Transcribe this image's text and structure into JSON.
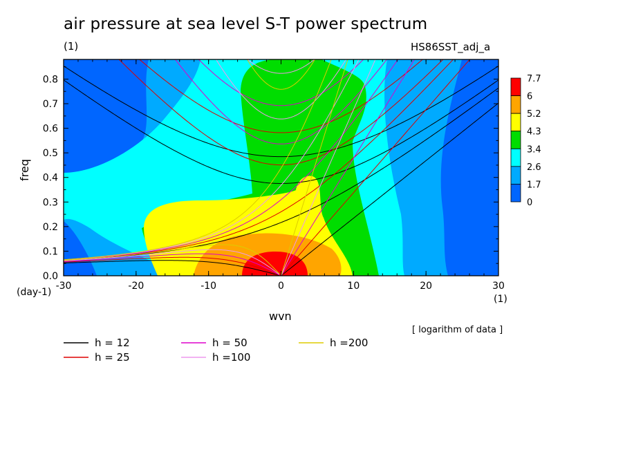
{
  "header": {
    "title": "air pressure at sea level S-T power spectrum",
    "unit": "(1)",
    "run_id": "HS86SST_adj_a"
  },
  "note": "[ logarithm of data ]",
  "chart_data": {
    "type": "heatmap",
    "xlabel": "wvn",
    "xunit": "(1)",
    "ylabel": "freq",
    "yunit": "(day-1)",
    "xlim": [
      -30,
      30
    ],
    "ylim": [
      0,
      0.88
    ],
    "xticks": [
      -30,
      -20,
      -10,
      0,
      10,
      20,
      30
    ],
    "yticks": [
      0.0,
      0.1,
      0.2,
      0.3,
      0.4,
      0.5,
      0.6,
      0.7,
      0.8
    ],
    "xtick_labels": [
      "-30",
      "-20",
      "-10",
      "0",
      "10",
      "20",
      "30"
    ],
    "ytick_labels": [
      "0.0",
      "0.1",
      "0.2",
      "0.3",
      "0.4",
      "0.5",
      "0.6",
      "0.7",
      "0.8"
    ],
    "colorbar": {
      "levels": [
        "7.7",
        "6",
        "5.2",
        "4.3",
        "3.4",
        "2.6",
        "1.7",
        "0"
      ],
      "colors": [
        "#ff0000",
        "#ffa500",
        "#ffff00",
        "#00dd00",
        "#00ffff",
        "#00aaff",
        "#0066ff"
      ]
    },
    "dispersion_curves": [
      {
        "label": "h = 12",
        "h": 12,
        "color": "#000000"
      },
      {
        "label": "h = 25",
        "h": 25,
        "color": "#dd0000"
      },
      {
        "label": "h = 50",
        "h": 50,
        "color": "#dd00cc"
      },
      {
        "label": "h =100",
        "h": 100,
        "color": "#ee99ee"
      },
      {
        "label": "h =200",
        "h": 200,
        "color": "#ddcc00"
      }
    ]
  }
}
